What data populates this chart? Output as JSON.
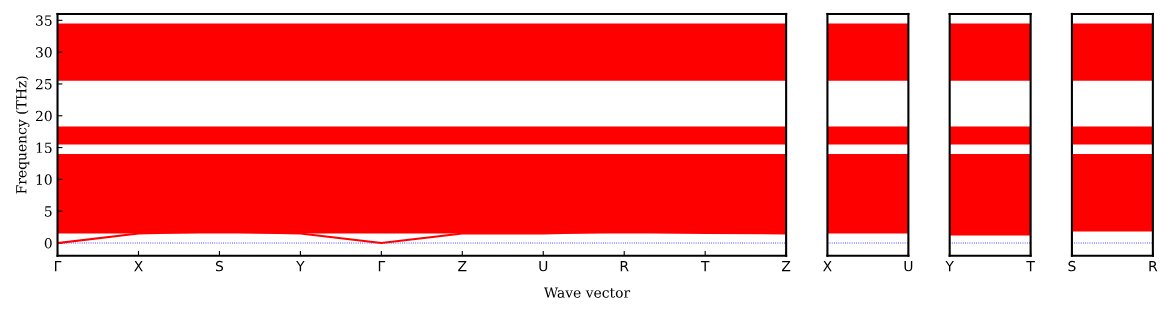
{
  "chart_data": [
    {
      "type": "line",
      "xlabel": "Wave vector",
      "ylabel": "Frequency (THz)",
      "ylim": [
        -2,
        36
      ],
      "yticks": [
        0,
        5,
        10,
        15,
        20,
        25,
        30,
        35
      ],
      "categories": [
        "Γ",
        "X",
        "S",
        "Y",
        "Γ",
        "Z",
        "U",
        "R",
        "T",
        "Z"
      ],
      "series": [
        {
          "color": "#ff0000",
          "values": [
            0,
            1.5,
            1.8,
            1.5,
            0,
            1.5,
            1.5,
            1.8,
            1.6,
            1.5
          ]
        }
      ],
      "bands": [
        {
          "axis": "y",
          "from": 1.5,
          "to": 14,
          "color": "#ff0000"
        },
        {
          "axis": "y",
          "from": 15.5,
          "to": 18.3,
          "color": "#ff0000"
        },
        {
          "axis": "y",
          "from": 25.5,
          "to": 34.5,
          "color": "#ff0000"
        }
      ],
      "ref_lines": [
        {
          "axis": "y",
          "value": 0,
          "color": "#0000ff",
          "line_style": "dotted"
        }
      ]
    },
    {
      "type": "line",
      "ylim": [
        -2,
        36
      ],
      "tick_labels": "x",
      "categories": [
        "X",
        "U"
      ],
      "bands": [
        {
          "axis": "y",
          "from": 1.5,
          "to": 14,
          "color": "#ff0000"
        },
        {
          "axis": "y",
          "from": 15.5,
          "to": 18.3,
          "color": "#ff0000"
        },
        {
          "axis": "y",
          "from": 25.5,
          "to": 34.5,
          "color": "#ff0000"
        }
      ],
      "ref_lines": [
        {
          "axis": "y",
          "value": 0,
          "color": "#0000ff",
          "line_style": "dotted"
        }
      ]
    },
    {
      "type": "line",
      "ylim": [
        -2,
        36
      ],
      "tick_labels": "x",
      "categories": [
        "Y",
        "T"
      ],
      "bands": [
        {
          "axis": "y",
          "from": 1.2,
          "to": 14,
          "color": "#ff0000"
        },
        {
          "axis": "y",
          "from": 15.5,
          "to": 18.3,
          "color": "#ff0000"
        },
        {
          "axis": "y",
          "from": 25.5,
          "to": 34.5,
          "color": "#ff0000"
        }
      ],
      "ref_lines": [
        {
          "axis": "y",
          "value": 0,
          "color": "#0000ff",
          "line_style": "dotted"
        }
      ]
    },
    {
      "type": "line",
      "ylim": [
        -2,
        36
      ],
      "tick_labels": "x",
      "categories": [
        "S",
        "R"
      ],
      "bands": [
        {
          "axis": "y",
          "from": 1.8,
          "to": 14,
          "color": "#ff0000"
        },
        {
          "axis": "y",
          "from": 15.5,
          "to": 18.3,
          "color": "#ff0000"
        },
        {
          "axis": "y",
          "from": 25.5,
          "to": 34.5,
          "color": "#ff0000"
        }
      ],
      "ref_lines": [
        {
          "axis": "y",
          "value": 0,
          "color": "#0000ff",
          "line_style": "dotted"
        }
      ]
    }
  ]
}
